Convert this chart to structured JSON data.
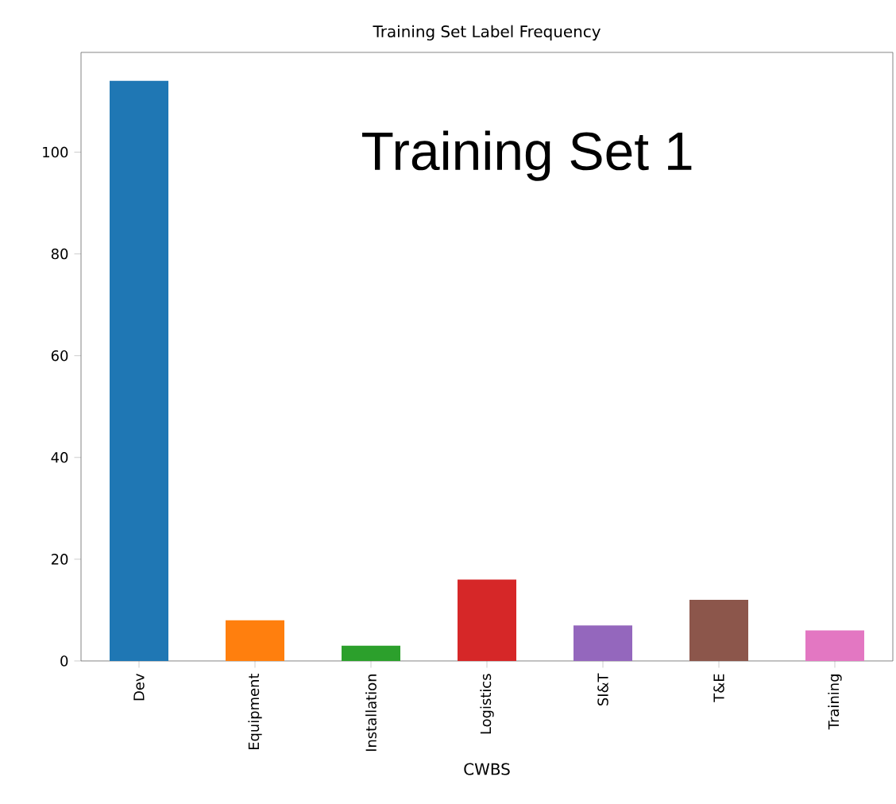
{
  "chart_data": {
    "type": "bar",
    "title": "Training Set Label Frequency",
    "xlabel": "CWBS",
    "annotations": [
      "Training Set 1"
    ],
    "categories": [
      "Dev",
      "Equipment",
      "Installation",
      "Logistics",
      "SI&T",
      "T&E",
      "Training"
    ],
    "values": [
      114,
      8,
      3,
      16,
      7,
      12,
      6
    ],
    "colors": [
      "#1f77b4",
      "#ff7f0e",
      "#2ca02c",
      "#d62728",
      "#9467bd",
      "#8c564b",
      "#e377c2"
    ],
    "ylim": [
      0,
      119.6
    ],
    "yticks": [
      0,
      20,
      40,
      60,
      80,
      100
    ],
    "grid": false
  }
}
